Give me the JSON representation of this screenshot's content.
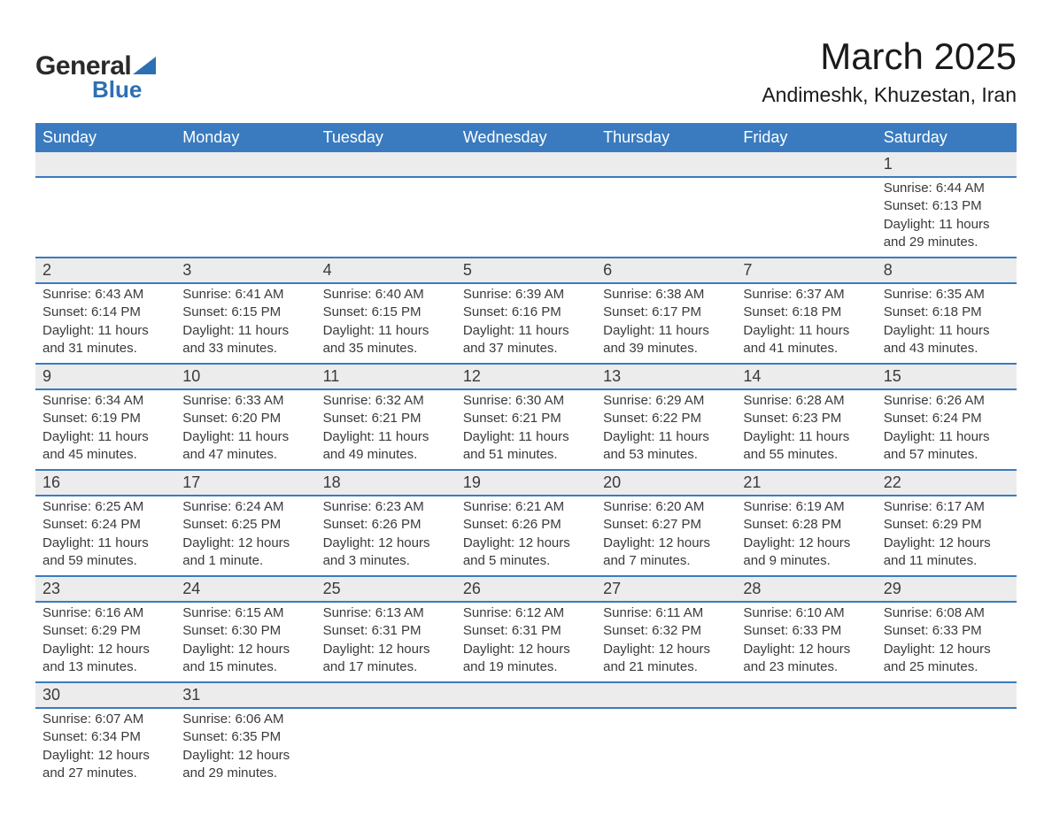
{
  "brand": {
    "word1": "General",
    "word2": "Blue",
    "accent_color": "#2d6fb3"
  },
  "title": "March 2025",
  "location": "Andimeshk, Khuzestan, Iran",
  "colors": {
    "header_bg": "#3a7bbf",
    "header_text": "#ffffff",
    "daynum_bg": "#ececec",
    "rule": "#3a7bbf",
    "body_text": "#3a3a3a",
    "page_bg": "#ffffff"
  },
  "fonts": {
    "title_size_pt": 32,
    "location_size_pt": 17,
    "header_size_pt": 14,
    "cell_size_pt": 11
  },
  "weekdays": [
    "Sunday",
    "Monday",
    "Tuesday",
    "Wednesday",
    "Thursday",
    "Friday",
    "Saturday"
  ],
  "days": [
    {
      "n": 1,
      "dow": 6,
      "sunrise": "6:44 AM",
      "sunset": "6:13 PM",
      "daylight": "11 hours and 29 minutes."
    },
    {
      "n": 2,
      "dow": 0,
      "sunrise": "6:43 AM",
      "sunset": "6:14 PM",
      "daylight": "11 hours and 31 minutes."
    },
    {
      "n": 3,
      "dow": 1,
      "sunrise": "6:41 AM",
      "sunset": "6:15 PM",
      "daylight": "11 hours and 33 minutes."
    },
    {
      "n": 4,
      "dow": 2,
      "sunrise": "6:40 AM",
      "sunset": "6:15 PM",
      "daylight": "11 hours and 35 minutes."
    },
    {
      "n": 5,
      "dow": 3,
      "sunrise": "6:39 AM",
      "sunset": "6:16 PM",
      "daylight": "11 hours and 37 minutes."
    },
    {
      "n": 6,
      "dow": 4,
      "sunrise": "6:38 AM",
      "sunset": "6:17 PM",
      "daylight": "11 hours and 39 minutes."
    },
    {
      "n": 7,
      "dow": 5,
      "sunrise": "6:37 AM",
      "sunset": "6:18 PM",
      "daylight": "11 hours and 41 minutes."
    },
    {
      "n": 8,
      "dow": 6,
      "sunrise": "6:35 AM",
      "sunset": "6:18 PM",
      "daylight": "11 hours and 43 minutes."
    },
    {
      "n": 9,
      "dow": 0,
      "sunrise": "6:34 AM",
      "sunset": "6:19 PM",
      "daylight": "11 hours and 45 minutes."
    },
    {
      "n": 10,
      "dow": 1,
      "sunrise": "6:33 AM",
      "sunset": "6:20 PM",
      "daylight": "11 hours and 47 minutes."
    },
    {
      "n": 11,
      "dow": 2,
      "sunrise": "6:32 AM",
      "sunset": "6:21 PM",
      "daylight": "11 hours and 49 minutes."
    },
    {
      "n": 12,
      "dow": 3,
      "sunrise": "6:30 AM",
      "sunset": "6:21 PM",
      "daylight": "11 hours and 51 minutes."
    },
    {
      "n": 13,
      "dow": 4,
      "sunrise": "6:29 AM",
      "sunset": "6:22 PM",
      "daylight": "11 hours and 53 minutes."
    },
    {
      "n": 14,
      "dow": 5,
      "sunrise": "6:28 AM",
      "sunset": "6:23 PM",
      "daylight": "11 hours and 55 minutes."
    },
    {
      "n": 15,
      "dow": 6,
      "sunrise": "6:26 AM",
      "sunset": "6:24 PM",
      "daylight": "11 hours and 57 minutes."
    },
    {
      "n": 16,
      "dow": 0,
      "sunrise": "6:25 AM",
      "sunset": "6:24 PM",
      "daylight": "11 hours and 59 minutes."
    },
    {
      "n": 17,
      "dow": 1,
      "sunrise": "6:24 AM",
      "sunset": "6:25 PM",
      "daylight": "12 hours and 1 minute."
    },
    {
      "n": 18,
      "dow": 2,
      "sunrise": "6:23 AM",
      "sunset": "6:26 PM",
      "daylight": "12 hours and 3 minutes."
    },
    {
      "n": 19,
      "dow": 3,
      "sunrise": "6:21 AM",
      "sunset": "6:26 PM",
      "daylight": "12 hours and 5 minutes."
    },
    {
      "n": 20,
      "dow": 4,
      "sunrise": "6:20 AM",
      "sunset": "6:27 PM",
      "daylight": "12 hours and 7 minutes."
    },
    {
      "n": 21,
      "dow": 5,
      "sunrise": "6:19 AM",
      "sunset": "6:28 PM",
      "daylight": "12 hours and 9 minutes."
    },
    {
      "n": 22,
      "dow": 6,
      "sunrise": "6:17 AM",
      "sunset": "6:29 PM",
      "daylight": "12 hours and 11 minutes."
    },
    {
      "n": 23,
      "dow": 0,
      "sunrise": "6:16 AM",
      "sunset": "6:29 PM",
      "daylight": "12 hours and 13 minutes."
    },
    {
      "n": 24,
      "dow": 1,
      "sunrise": "6:15 AM",
      "sunset": "6:30 PM",
      "daylight": "12 hours and 15 minutes."
    },
    {
      "n": 25,
      "dow": 2,
      "sunrise": "6:13 AM",
      "sunset": "6:31 PM",
      "daylight": "12 hours and 17 minutes."
    },
    {
      "n": 26,
      "dow": 3,
      "sunrise": "6:12 AM",
      "sunset": "6:31 PM",
      "daylight": "12 hours and 19 minutes."
    },
    {
      "n": 27,
      "dow": 4,
      "sunrise": "6:11 AM",
      "sunset": "6:32 PM",
      "daylight": "12 hours and 21 minutes."
    },
    {
      "n": 28,
      "dow": 5,
      "sunrise": "6:10 AM",
      "sunset": "6:33 PM",
      "daylight": "12 hours and 23 minutes."
    },
    {
      "n": 29,
      "dow": 6,
      "sunrise": "6:08 AM",
      "sunset": "6:33 PM",
      "daylight": "12 hours and 25 minutes."
    },
    {
      "n": 30,
      "dow": 0,
      "sunrise": "6:07 AM",
      "sunset": "6:34 PM",
      "daylight": "12 hours and 27 minutes."
    },
    {
      "n": 31,
      "dow": 1,
      "sunrise": "6:06 AM",
      "sunset": "6:35 PM",
      "daylight": "12 hours and 29 minutes."
    }
  ],
  "labels": {
    "sunrise": "Sunrise:",
    "sunset": "Sunset:",
    "daylight": "Daylight:"
  }
}
